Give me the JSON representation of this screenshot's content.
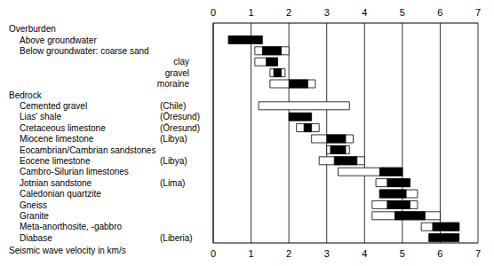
{
  "chart_data": {
    "type": "range_bar",
    "orientation": "horizontal",
    "x_label": "Seismic wave velocity in km/s",
    "xlim": [
      0,
      7
    ],
    "xticks": [
      0,
      1,
      2,
      3,
      4,
      5,
      6,
      7
    ],
    "grid": true,
    "groups": [
      {
        "title": "Overburden",
        "rows": [
          {
            "name": "Above groundwater",
            "full": null,
            "typical": [
              0.4,
              1.3
            ]
          },
          {
            "name": "Below groundwater: coarse sand",
            "full": [
              1.1,
              2.0
            ],
            "typical": [
              1.3,
              1.8
            ]
          },
          {
            "name": "clay",
            "full": [
              1.1,
              1.7
            ],
            "typical": [
              1.4,
              1.7
            ]
          },
          {
            "name": "gravel",
            "full": [
              1.5,
              1.9
            ],
            "typical": [
              1.6,
              1.8
            ]
          },
          {
            "name": "moraine",
            "full": [
              1.5,
              2.7
            ],
            "typical": [
              2.0,
              2.5
            ]
          }
        ]
      },
      {
        "title": "Bedrock",
        "rows": [
          {
            "name": "Cemented gravel",
            "region": "(Chile)",
            "full": [
              1.2,
              3.6
            ],
            "typical": null
          },
          {
            "name": "Lias' shale",
            "region": "(Öresund)",
            "full": null,
            "typical": [
              2.0,
              2.6
            ]
          },
          {
            "name": "Cretaceous limestone",
            "region": "(Öresund)",
            "full": [
              2.2,
              2.8
            ],
            "typical": [
              2.4,
              2.6
            ]
          },
          {
            "name": "Miocene limestone",
            "region": "(Libya)",
            "full": [
              2.6,
              3.7
            ],
            "typical": [
              3.0,
              3.5
            ]
          },
          {
            "name": "Eocambrian/Cambrian sandstones",
            "full": [
              3.0,
              3.6
            ],
            "typical": [
              3.1,
              3.5
            ]
          },
          {
            "name": "Eocene limestone",
            "region": "(Libya)",
            "full": [
              2.8,
              4.0
            ],
            "typical": [
              3.2,
              3.8
            ]
          },
          {
            "name": "Cambro-Silurian limestones",
            "full": [
              3.3,
              5.0
            ],
            "typical": [
              4.4,
              5.0
            ]
          },
          {
            "name": "Jotnian sandstone",
            "region": "(Lima)",
            "full": [
              4.3,
              5.2
            ],
            "typical": [
              4.6,
              5.2
            ]
          },
          {
            "name": "Caledonian quartzite",
            "full": [
              4.4,
              5.4
            ],
            "typical": [
              4.4,
              5.1
            ]
          },
          {
            "name": "Gneiss",
            "full": [
              4.2,
              5.4
            ],
            "typical": [
              4.6,
              5.2
            ]
          },
          {
            "name": "Granite",
            "full": [
              4.2,
              6.0
            ],
            "typical": [
              4.8,
              5.6
            ]
          },
          {
            "name": "Meta-anorthosite, -gabbro",
            "full": [
              5.5,
              6.5
            ],
            "typical": [
              5.8,
              6.5
            ]
          },
          {
            "name": "Diabase",
            "region": "(Liberia)",
            "full": null,
            "typical": [
              5.7,
              6.5
            ]
          }
        ]
      }
    ]
  }
}
